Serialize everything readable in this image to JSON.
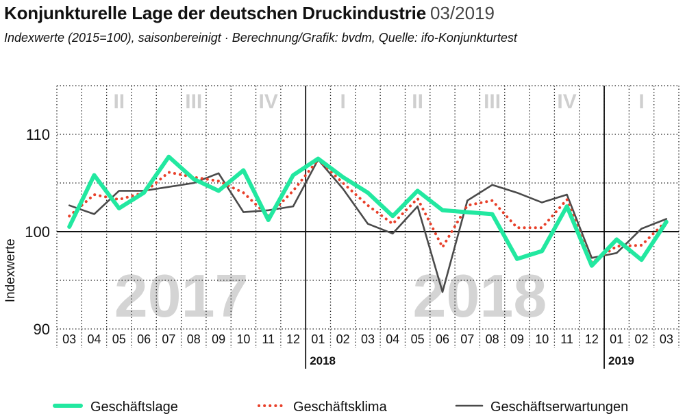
{
  "title": "Konjunkturelle Lage der deutschen Druckindustrie",
  "date": "03/2019",
  "subtitle": "Indexwerte (2015=100), saisonbereinigt · Berechnung/Grafik: bvdm, Quelle: ifo-Konjunkturtest",
  "colors": {
    "lage": "#22e8a0",
    "klima": "#e8402a",
    "erwartungen": "#4a4a4a"
  },
  "chart_data": {
    "type": "line",
    "ylabel": "Indexwerte",
    "ylim": [
      90,
      115
    ],
    "yticks": [
      90,
      100,
      110
    ],
    "x": [
      "03",
      "04",
      "05",
      "06",
      "07",
      "08",
      "09",
      "10",
      "11",
      "12",
      "01",
      "02",
      "03",
      "04",
      "05",
      "06",
      "07",
      "08",
      "09",
      "10",
      "11",
      "12",
      "01",
      "02",
      "03"
    ],
    "year_labels": [
      {
        "label": "2018",
        "index": 10
      },
      {
        "label": "2019",
        "index": 22
      }
    ],
    "quarter_labels": [
      {
        "label": "II",
        "center": 2
      },
      {
        "label": "III",
        "center": 5
      },
      {
        "label": "IV",
        "center": 8
      },
      {
        "label": "I",
        "center": 11
      },
      {
        "label": "II",
        "center": 14
      },
      {
        "label": "III",
        "center": 17
      },
      {
        "label": "IV",
        "center": 20
      },
      {
        "label": "I",
        "center": 23
      }
    ],
    "background_years": [
      {
        "label": "2017",
        "center": 4.5
      },
      {
        "label": "2018",
        "center": 16.5
      }
    ],
    "series": [
      {
        "name": "Geschäftslage",
        "style": "solid-thick",
        "values": [
          100.5,
          105.8,
          102.4,
          104.0,
          107.7,
          105.4,
          104.2,
          106.3,
          101.2,
          105.8,
          107.5,
          105.6,
          104.0,
          101.6,
          104.2,
          102.2,
          102.0,
          101.8,
          97.2,
          98.0,
          102.6,
          96.5,
          99.2,
          97.1,
          101.0
        ]
      },
      {
        "name": "Geschäftsklima",
        "style": "dotted",
        "values": [
          101.6,
          103.8,
          103.3,
          104.0,
          106.1,
          105.6,
          105.2,
          104.0,
          101.6,
          104.2,
          107.4,
          105.0,
          102.7,
          100.8,
          103.4,
          98.4,
          102.7,
          103.2,
          100.4,
          100.4,
          103.3,
          96.8,
          98.5,
          98.6,
          101.1
        ]
      },
      {
        "name": "Geschäftserwartungen",
        "style": "solid-thin",
        "values": [
          102.7,
          101.8,
          104.2,
          104.2,
          104.6,
          105.0,
          106.0,
          102.0,
          102.2,
          102.6,
          107.4,
          104.4,
          100.8,
          99.8,
          102.6,
          93.8,
          103.2,
          104.8,
          104.0,
          103.0,
          103.8,
          97.3,
          97.8,
          100.3,
          101.3
        ]
      }
    ]
  }
}
